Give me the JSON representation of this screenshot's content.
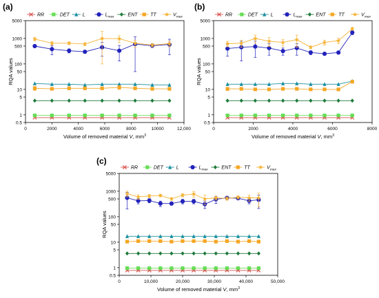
{
  "figure": {
    "legend_labels": [
      "RR",
      "DET",
      "L",
      "L",
      "ENT",
      "TT",
      "V"
    ],
    "legend_subscripts": [
      "",
      "",
      "",
      "max",
      "",
      "",
      "max"
    ],
    "series_styles": [
      {
        "color": "#d9534f",
        "marker": "x"
      },
      {
        "color": "#66dd55",
        "marker": "square"
      },
      {
        "color": "#1a8f9f",
        "marker": "triangle"
      },
      {
        "color": "#2222bb",
        "marker": "circle"
      },
      {
        "color": "#1f7a3a",
        "marker": "diamond"
      },
      {
        "color": "#f5a623",
        "marker": "square"
      },
      {
        "color": "#f5b335",
        "marker": "star"
      }
    ]
  },
  "chart_data": [
    {
      "panel_label": "(a)",
      "type": "line",
      "ylabel": "RQA values",
      "xlabel_main": "Volume of removed material ",
      "xlabel_var": "V",
      "xlabel_unit": ", mm",
      "xlabel_exp": "3",
      "y_scale": "log",
      "ylim": [
        0.5,
        5000
      ],
      "y_ticks": [
        "0.5",
        "1",
        "5",
        "10",
        "50",
        "100",
        "500",
        "1000",
        "5000"
      ],
      "xlim": [
        0,
        12000
      ],
      "x_ticks": [
        "0",
        "2000",
        "4000",
        "6000",
        "8000",
        "10000",
        "12,000"
      ],
      "x": [
        700,
        2000,
        3300,
        4500,
        5800,
        7100,
        8300,
        9600,
        10900
      ],
      "series": [
        {
          "values": [
            0.78,
            0.78,
            0.78,
            0.78,
            0.78,
            0.78,
            0.78,
            0.78,
            0.78
          ]
        },
        {
          "values": [
            0.95,
            0.95,
            0.95,
            0.95,
            0.95,
            0.95,
            0.95,
            0.95,
            0.95
          ]
        },
        {
          "values": [
            17,
            16,
            16,
            15,
            16,
            16,
            16,
            15,
            15
          ]
        },
        {
          "values": [
            500,
            380,
            330,
            300,
            450,
            330,
            600,
            520,
            580
          ],
          "err": [
            60,
            150,
            60,
            40,
            250,
            200,
            550,
            80,
            350
          ]
        },
        {
          "values": [
            3.6,
            3.6,
            3.6,
            3.6,
            3.6,
            3.6,
            3.6,
            3.6,
            3.6
          ]
        },
        {
          "values": [
            11,
            10.5,
            11,
            11,
            11,
            12,
            11,
            10.5,
            10.5
          ],
          "err": [
            2,
            0.5,
            0.5,
            0.5,
            0.5,
            2,
            1,
            0.5,
            0.5
          ]
        },
        {
          "values": [
            950,
            650,
            650,
            600,
            1000,
            980,
            650,
            550,
            620
          ],
          "err": [
            150,
            100,
            80,
            80,
            900,
            300,
            200,
            80,
            150
          ]
        }
      ]
    },
    {
      "panel_label": "(b)",
      "type": "line",
      "ylabel": "RQA values",
      "xlabel_main": "Volume of removed material ",
      "xlabel_var": "V",
      "xlabel_unit": ", mm",
      "xlabel_exp": "3",
      "y_scale": "log",
      "ylim": [
        0.5,
        5000
      ],
      "y_ticks": [
        "0.5",
        "1",
        "5",
        "10",
        "50",
        "100",
        "500",
        "1000",
        "5000"
      ],
      "xlim": [
        0,
        8000
      ],
      "x_ticks": [
        "0",
        "2000",
        "4000",
        "6000",
        "8000"
      ],
      "x": [
        700,
        1400,
        2100,
        2800,
        3500,
        4200,
        4900,
        5600,
        6300,
        7000
      ],
      "series": [
        {
          "values": [
            0.78,
            0.78,
            0.78,
            0.78,
            0.78,
            0.78,
            0.78,
            0.78,
            0.78,
            0.78
          ]
        },
        {
          "values": [
            0.95,
            0.95,
            0.95,
            0.95,
            0.95,
            0.95,
            0.95,
            0.95,
            0.95,
            0.95
          ]
        },
        {
          "values": [
            16,
            16,
            16,
            16,
            17,
            17,
            16,
            16,
            16,
            21
          ]
        },
        {
          "values": [
            400,
            450,
            480,
            420,
            320,
            420,
            280,
            250,
            280,
            1700
          ],
          "err": [
            200,
            320,
            300,
            200,
            100,
            200,
            50,
            30,
            40,
            300
          ]
        },
        {
          "values": [
            3.6,
            3.6,
            3.6,
            3.6,
            3.6,
            3.6,
            3.6,
            3.6,
            3.6,
            3.6
          ]
        },
        {
          "values": [
            10.5,
            10.5,
            10,
            10,
            10.5,
            10.5,
            10,
            10,
            10,
            20
          ],
          "err": [
            1.5,
            1,
            1,
            1,
            1,
            1,
            0.5,
            0.5,
            0.5,
            2
          ]
        },
        {
          "values": [
            620,
            650,
            1000,
            780,
            700,
            900,
            450,
            700,
            820,
            2400
          ],
          "err": [
            150,
            200,
            350,
            300,
            200,
            450,
            50,
            150,
            200,
            300
          ]
        }
      ]
    },
    {
      "panel_label": "(c)",
      "type": "line",
      "ylabel": "RQA values",
      "xlabel_main": "Volume of removed material ",
      "xlabel_var": "V",
      "xlabel_unit": ", mm",
      "xlabel_exp": "3",
      "y_scale": "log",
      "ylim": [
        0.5,
        5000
      ],
      "y_ticks": [
        "0.5",
        "1",
        "5",
        "10",
        "50",
        "100",
        "500",
        "1000",
        "5000"
      ],
      "xlim": [
        0,
        50000
      ],
      "x_ticks": [
        "0",
        "10,000",
        "20,000",
        "30,000",
        "40,000",
        "50,000"
      ],
      "x": [
        2500,
        6000,
        9500,
        13000,
        16500,
        20000,
        23500,
        27000,
        30500,
        34000,
        37500,
        41000,
        44000
      ],
      "series": [
        {
          "values": [
            0.78,
            0.78,
            0.78,
            0.78,
            0.78,
            0.78,
            0.78,
            0.78,
            0.78,
            0.78,
            0.78,
            0.78,
            0.78
          ]
        },
        {
          "values": [
            0.95,
            0.95,
            0.95,
            0.95,
            0.95,
            0.95,
            0.95,
            0.95,
            0.95,
            0.95,
            0.95,
            0.95,
            0.95
          ]
        },
        {
          "values": [
            17,
            17,
            17,
            17,
            17,
            17,
            17,
            17,
            17,
            17,
            17,
            17,
            17
          ]
        },
        {
          "values": [
            550,
            420,
            430,
            330,
            330,
            400,
            400,
            310,
            480,
            550,
            530,
            420,
            460
          ],
          "err": [
            350,
            100,
            80,
            80,
            50,
            80,
            80,
            100,
            150,
            60,
            50,
            100,
            250
          ]
        },
        {
          "values": [
            3.6,
            3.6,
            3.6,
            3.6,
            3.6,
            3.6,
            3.6,
            3.6,
            3.6,
            3.6,
            3.6,
            3.6,
            3.6
          ]
        },
        {
          "values": [
            10.5,
            11,
            11,
            11,
            10.5,
            11,
            11,
            11,
            10.5,
            11,
            10.5,
            11,
            10.5
          ],
          "err": [
            1,
            1,
            1,
            0.5,
            0.5,
            1,
            1,
            0.5,
            0.5,
            0.5,
            0.5,
            1,
            0.5
          ]
        },
        {
          "values": [
            800,
            600,
            650,
            680,
            500,
            700,
            780,
            500,
            550,
            520,
            580,
            550,
            550
          ],
          "err": [
            200,
            120,
            100,
            80,
            60,
            100,
            200,
            200,
            100,
            80,
            80,
            150,
            300
          ]
        }
      ]
    }
  ]
}
